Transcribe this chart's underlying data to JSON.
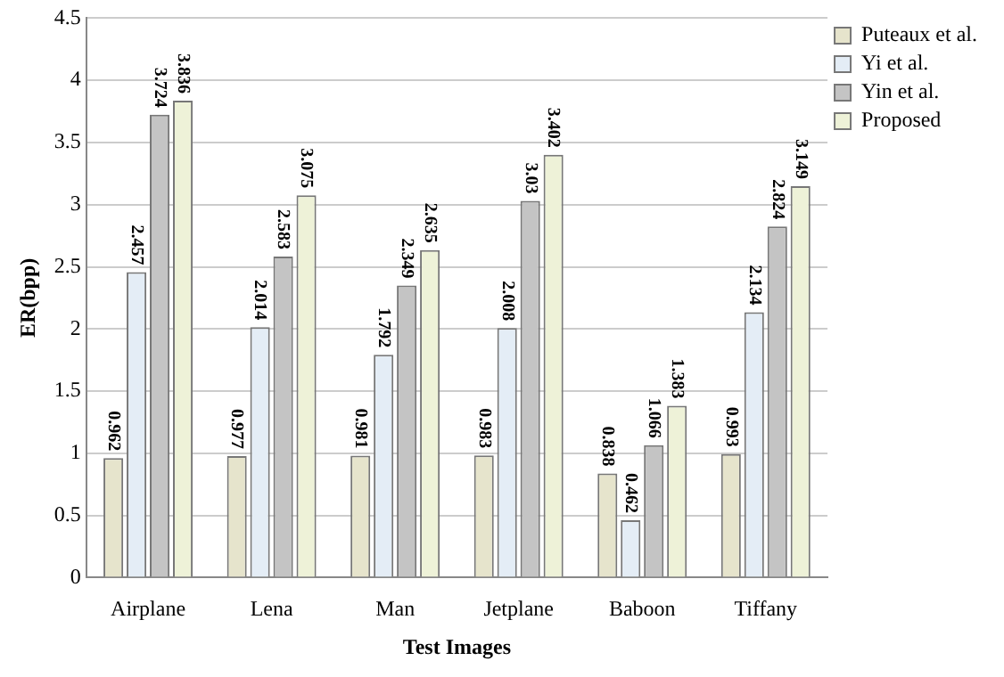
{
  "chart_data": {
    "type": "bar",
    "xlabel": "Test Images",
    "ylabel": "ER(bpp)",
    "categories": [
      "Airplane",
      "Lena",
      "Man",
      "Jetplane",
      "Baboon",
      "Tiffany"
    ],
    "series": [
      {
        "name": "Puteaux et al.",
        "color": "#e6e4cc",
        "values": [
          0.962,
          0.977,
          0.981,
          0.983,
          0.838,
          0.993
        ]
      },
      {
        "name": "Yi et al.",
        "color": "#e4edf6",
        "values": [
          2.457,
          2.014,
          1.792,
          2.008,
          0.462,
          2.134
        ]
      },
      {
        "name": "Yin et al.",
        "color": "#c4c4c4",
        "values": [
          3.724,
          2.583,
          2.349,
          3.03,
          1.066,
          2.824
        ]
      },
      {
        "name": "Proposed",
        "color": "#eef2d8",
        "values": [
          3.836,
          3.075,
          2.635,
          3.402,
          1.383,
          3.149
        ]
      }
    ],
    "ylim": [
      0,
      4.5
    ],
    "yticks": [
      0,
      0.5,
      1,
      1.5,
      2,
      2.5,
      3,
      3.5,
      4,
      4.5
    ],
    "grid": "y",
    "legend": "top right",
    "data_labels": true
  }
}
